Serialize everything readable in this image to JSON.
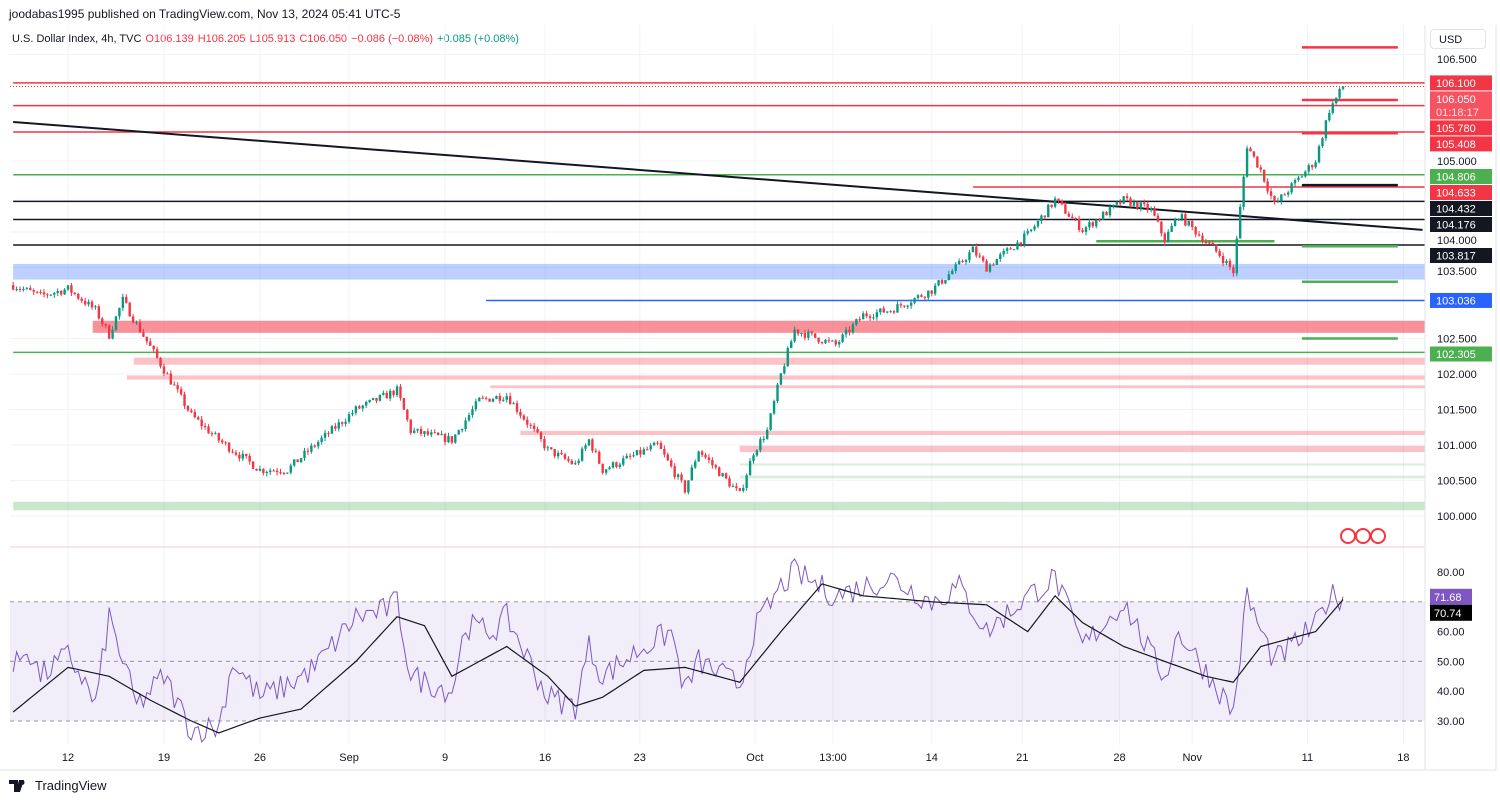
{
  "publish_line": "joodabas1995 published on TradingView.com, Nov 13, 2024 05:41 UTC-5",
  "legend": {
    "symbol": "U.S. Dollar Index, 4h, TVC",
    "open": "O106.139",
    "high": "H106.205",
    "low": "L105.913",
    "close": "C106.050",
    "change": "−0.086 (−0.08%)",
    "rsi_change": "+0.085 (+0.08%)"
  },
  "currency_button": "USD",
  "brand": "TradingView",
  "colors": {
    "up": "#089981",
    "down": "#f23645",
    "rsi": "#7e57c2",
    "ma": "#131722",
    "blue": "#2962ff",
    "green": "#4caf50"
  },
  "chart_data": {
    "type": "candlestick",
    "title": "U.S. Dollar Index, 4h, TVC",
    "ylim": [
      99.6,
      106.6
    ],
    "x_ticks": [
      {
        "d": 0,
        "label": "12"
      },
      {
        "d": 7,
        "label": "19"
      },
      {
        "d": 14,
        "label": "26"
      },
      {
        "d": 20.5,
        "label": "Sep"
      },
      {
        "d": 27.5,
        "label": "9"
      },
      {
        "d": 34.8,
        "label": "16"
      },
      {
        "d": 41.7,
        "label": "23"
      },
      {
        "d": 50.1,
        "label": "Oct"
      },
      {
        "d": 55.8,
        "label": "13:00"
      },
      {
        "d": 63,
        "label": "14"
      },
      {
        "d": 69.6,
        "label": "21"
      },
      {
        "d": 76.7,
        "label": "28"
      },
      {
        "d": 82,
        "label": "Nov"
      },
      {
        "d": 90.4,
        "label": "11"
      },
      {
        "d": 97.4,
        "label": "18"
      }
    ],
    "price_ticks": [
      "106.500",
      "105.000",
      "104.000",
      "103.500",
      "102.500",
      "102.000",
      "101.500",
      "101.000",
      "100.500",
      "100.000"
    ],
    "price_tick_values": [
      106.5,
      105,
      104,
      103.5,
      102.5,
      102,
      101.5,
      101,
      100.5,
      100
    ],
    "price_path": [
      [
        -4,
        103.25
      ],
      [
        -2,
        103.1
      ],
      [
        0,
        103.2
      ],
      [
        2,
        102.9
      ],
      [
        3,
        102.55
      ],
      [
        4,
        103.04
      ],
      [
        5,
        102.7
      ],
      [
        7,
        102.06
      ],
      [
        9,
        101.42
      ],
      [
        11,
        101.07
      ],
      [
        14,
        100.65
      ],
      [
        16,
        100.65
      ],
      [
        18,
        101.0
      ],
      [
        21,
        101.5
      ],
      [
        24,
        101.77
      ],
      [
        25,
        101.2
      ],
      [
        28,
        101.07
      ],
      [
        30,
        101.63
      ],
      [
        32,
        101.7
      ],
      [
        35,
        100.93
      ],
      [
        37,
        100.72
      ],
      [
        38,
        101.07
      ],
      [
        39,
        100.65
      ],
      [
        43,
        101.0
      ],
      [
        45,
        100.37
      ],
      [
        46,
        100.93
      ],
      [
        49,
        100.3
      ],
      [
        50,
        100.9
      ],
      [
        51,
        101.2
      ],
      [
        52,
        101.99
      ],
      [
        53,
        102.62
      ],
      [
        56,
        102.41
      ],
      [
        58,
        102.83
      ],
      [
        60,
        102.9
      ],
      [
        63,
        103.18
      ],
      [
        65,
        103.54
      ],
      [
        66,
        103.75
      ],
      [
        67,
        103.5
      ],
      [
        70,
        103.96
      ],
      [
        72,
        104.45
      ],
      [
        74,
        104.03
      ],
      [
        77,
        104.45
      ],
      [
        79,
        104.31
      ],
      [
        80,
        103.89
      ],
      [
        81,
        104.24
      ],
      [
        84,
        103.68
      ],
      [
        85,
        103.44
      ],
      [
        86,
        105.22
      ],
      [
        87,
        104.87
      ],
      [
        88,
        104.38
      ],
      [
        91,
        105.01
      ],
      [
        92,
        105.72
      ],
      [
        93,
        106.05
      ]
    ],
    "levels": [
      {
        "price": 106.1,
        "label": "106.100",
        "color": "#f23645",
        "from": -4,
        "badge": true
      },
      {
        "price": 105.78,
        "label": "105.780",
        "color": "#f23645",
        "from": -4,
        "badge": true
      },
      {
        "price": 105.408,
        "label": "105.408",
        "color": "#f23645",
        "from": -4,
        "badge": true
      },
      {
        "price": 104.806,
        "label": "104.806",
        "color": "#4caf50",
        "from": -4,
        "badge": true
      },
      {
        "price": 104.633,
        "label": "104.633",
        "color": "#f23645",
        "from": 66,
        "badge": true
      },
      {
        "price": 104.432,
        "label": "104.432",
        "color": "#131722",
        "from": -4,
        "badge": true
      },
      {
        "price": 104.176,
        "label": "104.176",
        "color": "#131722",
        "from": -4,
        "badge": true
      },
      {
        "price": 103.817,
        "label": "103.817",
        "color": "#131722",
        "from": -4,
        "badge": true
      },
      {
        "price": 103.036,
        "label": "103.036",
        "color": "#2962ff",
        "from": 30.5,
        "badge": true
      },
      {
        "price": 102.305,
        "label": "102.305",
        "color": "#4caf50",
        "from": -4,
        "badge": true
      }
    ],
    "segments": [
      {
        "price": 106.6,
        "color": "#f23645",
        "from": 90,
        "to": 97
      },
      {
        "price": 105.86,
        "color": "#f23645",
        "from": 90,
        "to": 97
      },
      {
        "price": 105.39,
        "color": "#f23645",
        "from": 90,
        "to": 97
      },
      {
        "price": 104.66,
        "color": "#131722",
        "from": 90,
        "to": 97
      },
      {
        "price": 103.87,
        "color": "#4caf50",
        "from": 75,
        "to": 88
      },
      {
        "price": 103.8,
        "color": "#4caf50",
        "from": 90,
        "to": 97
      },
      {
        "price": 103.3,
        "color": "#4caf50",
        "from": 90,
        "to": 97
      },
      {
        "price": 102.5,
        "color": "#4caf50",
        "from": 90,
        "to": 97
      }
    ],
    "trendline": {
      "from": [
        -4,
        105.55
      ],
      "to": [
        98.8,
        104.03
      ],
      "color": "#131722"
    },
    "zones": [
      {
        "top": 103.55,
        "bottom": 103.33,
        "color": "rgba(41,98,255,0.3)",
        "from": -4
      },
      {
        "top": 102.75,
        "bottom": 102.58,
        "color": "rgba(242,54,69,0.55)",
        "from": 1.8
      },
      {
        "top": 102.23,
        "bottom": 102.13,
        "color": "rgba(242,54,69,0.3)",
        "from": 4.8
      },
      {
        "top": 101.98,
        "bottom": 101.92,
        "color": "rgba(242,54,69,0.3)",
        "from": 4.3
      },
      {
        "top": 101.84,
        "bottom": 101.8,
        "color": "rgba(242,54,69,0.3)",
        "from": 30.8
      },
      {
        "top": 101.2,
        "bottom": 101.14,
        "color": "rgba(242,54,69,0.3)",
        "from": 33
      },
      {
        "top": 100.99,
        "bottom": 100.9,
        "color": "rgba(242,54,69,0.3)",
        "from": 49
      },
      {
        "top": 100.74,
        "bottom": 100.71,
        "color": "rgba(76,175,80,0.2)",
        "from": 49
      },
      {
        "top": 100.57,
        "bottom": 100.53,
        "color": "rgba(76,175,80,0.2)",
        "from": 49
      },
      {
        "top": 100.2,
        "bottom": 100.08,
        "color": "rgba(76,175,80,0.3)",
        "from": -4
      }
    ],
    "last_price": {
      "value": "106.050",
      "countdown": "01:18:17"
    },
    "rsi": {
      "ticks": [
        "80.00",
        "60.00",
        "50.00",
        "40.00",
        "30.00"
      ],
      "tick_values": [
        80,
        60,
        50,
        40,
        30
      ],
      "bands": [
        70,
        50,
        30
      ],
      "value_label": "71.68",
      "ma_label": "70.74",
      "values": [
        [
          -4,
          47
        ],
        [
          -3,
          55
        ],
        [
          -2,
          45
        ],
        [
          0,
          52
        ],
        [
          1,
          45
        ],
        [
          2,
          35
        ],
        [
          3,
          65
        ],
        [
          5,
          35
        ],
        [
          7,
          45
        ],
        [
          9,
          27
        ],
        [
          11,
          28
        ],
        [
          12,
          50
        ],
        [
          14,
          38
        ],
        [
          16,
          42
        ],
        [
          18,
          48
        ],
        [
          21,
          65
        ],
        [
          23,
          67
        ],
        [
          24,
          70
        ],
        [
          25,
          45
        ],
        [
          28,
          40
        ],
        [
          29,
          62
        ],
        [
          31,
          60
        ],
        [
          32,
          65
        ],
        [
          35,
          38
        ],
        [
          37,
          35
        ],
        [
          38,
          55
        ],
        [
          39,
          45
        ],
        [
          42,
          55
        ],
        [
          44,
          60
        ],
        [
          45,
          40
        ],
        [
          46,
          50
        ],
        [
          49,
          42
        ],
        [
          50,
          60
        ],
        [
          52,
          75
        ],
        [
          53,
          80
        ],
        [
          56,
          72
        ],
        [
          58,
          75
        ],
        [
          60,
          78
        ],
        [
          63,
          70
        ],
        [
          65,
          75
        ],
        [
          67,
          60
        ],
        [
          70,
          72
        ],
        [
          72,
          78
        ],
        [
          74,
          55
        ],
        [
          77,
          70
        ],
        [
          79,
          52
        ],
        [
          80,
          45
        ],
        [
          81,
          60
        ],
        [
          84,
          40
        ],
        [
          85,
          33
        ],
        [
          86,
          72
        ],
        [
          87,
          60
        ],
        [
          88,
          50
        ],
        [
          91,
          62
        ],
        [
          92,
          72
        ],
        [
          93,
          71.68
        ]
      ],
      "ma": [
        [
          -4,
          33
        ],
        [
          0,
          48
        ],
        [
          3,
          45
        ],
        [
          6,
          37
        ],
        [
          9,
          30
        ],
        [
          11,
          26
        ],
        [
          14,
          31
        ],
        [
          17,
          34
        ],
        [
          21,
          50
        ],
        [
          24,
          65
        ],
        [
          26,
          62
        ],
        [
          28,
          45
        ],
        [
          30,
          50
        ],
        [
          32,
          55
        ],
        [
          35,
          45
        ],
        [
          37,
          35
        ],
        [
          39,
          38
        ],
        [
          42,
          47
        ],
        [
          45,
          48
        ],
        [
          49,
          43
        ],
        [
          52,
          60
        ],
        [
          55,
          76
        ],
        [
          58,
          72
        ],
        [
          63,
          70
        ],
        [
          67,
          69
        ],
        [
          70,
          60
        ],
        [
          72,
          72
        ],
        [
          74,
          63
        ],
        [
          77,
          55
        ],
        [
          80,
          50
        ],
        [
          83,
          45
        ],
        [
          85,
          43
        ],
        [
          87,
          55
        ],
        [
          91,
          60
        ],
        [
          93,
          70.74
        ]
      ]
    }
  }
}
